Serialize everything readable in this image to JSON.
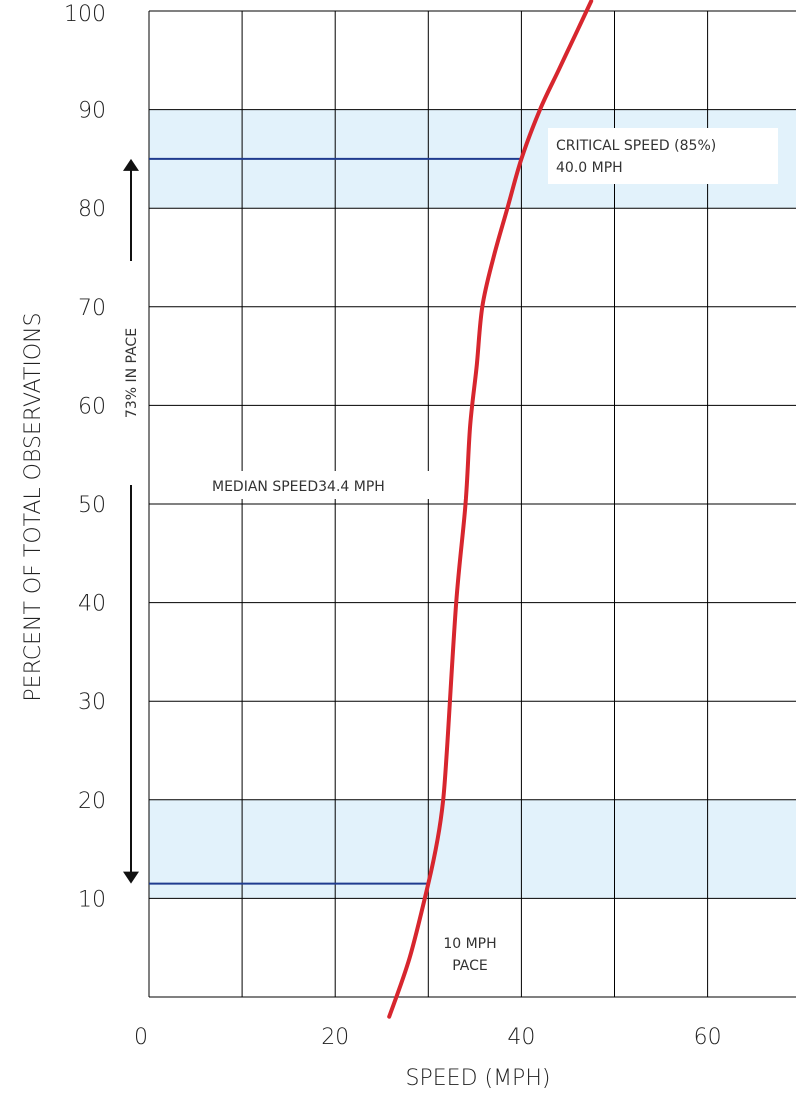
{
  "chart_data": {
    "type": "line",
    "xlabel": "SPEED (MPH)",
    "ylabel": "PERCENT OF TOTAL OBSERVATIONS",
    "xlim": [
      0,
      70
    ],
    "ylim": [
      0,
      100
    ],
    "x_ticks": [
      0,
      20,
      40,
      60
    ],
    "y_ticks": [
      10,
      20,
      30,
      40,
      50,
      60,
      70,
      80,
      90,
      100
    ],
    "grid": true,
    "series": [
      {
        "color": "#d7262e",
        "x": [
          25.8,
          28,
          30,
          31,
          31.6,
          32,
          33,
          34,
          34.5,
          35.2,
          35.8,
          37,
          38.5,
          40,
          42,
          44,
          46,
          47.5
        ],
        "y": [
          -2,
          4,
          11.5,
          16,
          20,
          25,
          40,
          50,
          58,
          64,
          70,
          75,
          80,
          85,
          90,
          94,
          98,
          101
        ]
      }
    ],
    "shaded_bands_y": [
      [
        10,
        20
      ],
      [
        80,
        90
      ]
    ],
    "reference_lines": [
      {
        "y": 85,
        "x_from": 0,
        "x_to": 40,
        "color": "#1f3c8f"
      },
      {
        "y": 11.5,
        "x_from": 0,
        "x_to": 30,
        "color": "#1f3c8f"
      }
    ],
    "pace_arrow": {
      "x": -1.5,
      "y_from": 11.5,
      "y_to": 85,
      "label": "73% IN PACE"
    },
    "annotations": {
      "critical_line1": "CRITICAL SPEED (85%)",
      "critical_line2": "40.0 MPH",
      "median": "MEDIAN SPEED34.4 MPH",
      "pace_line1": "10 MPH",
      "pace_line2": "PACE"
    },
    "colors": {
      "band": "#e2f2fb",
      "grid": "#000000",
      "curve": "#d7262e",
      "reference": "#1f3c8f"
    }
  }
}
